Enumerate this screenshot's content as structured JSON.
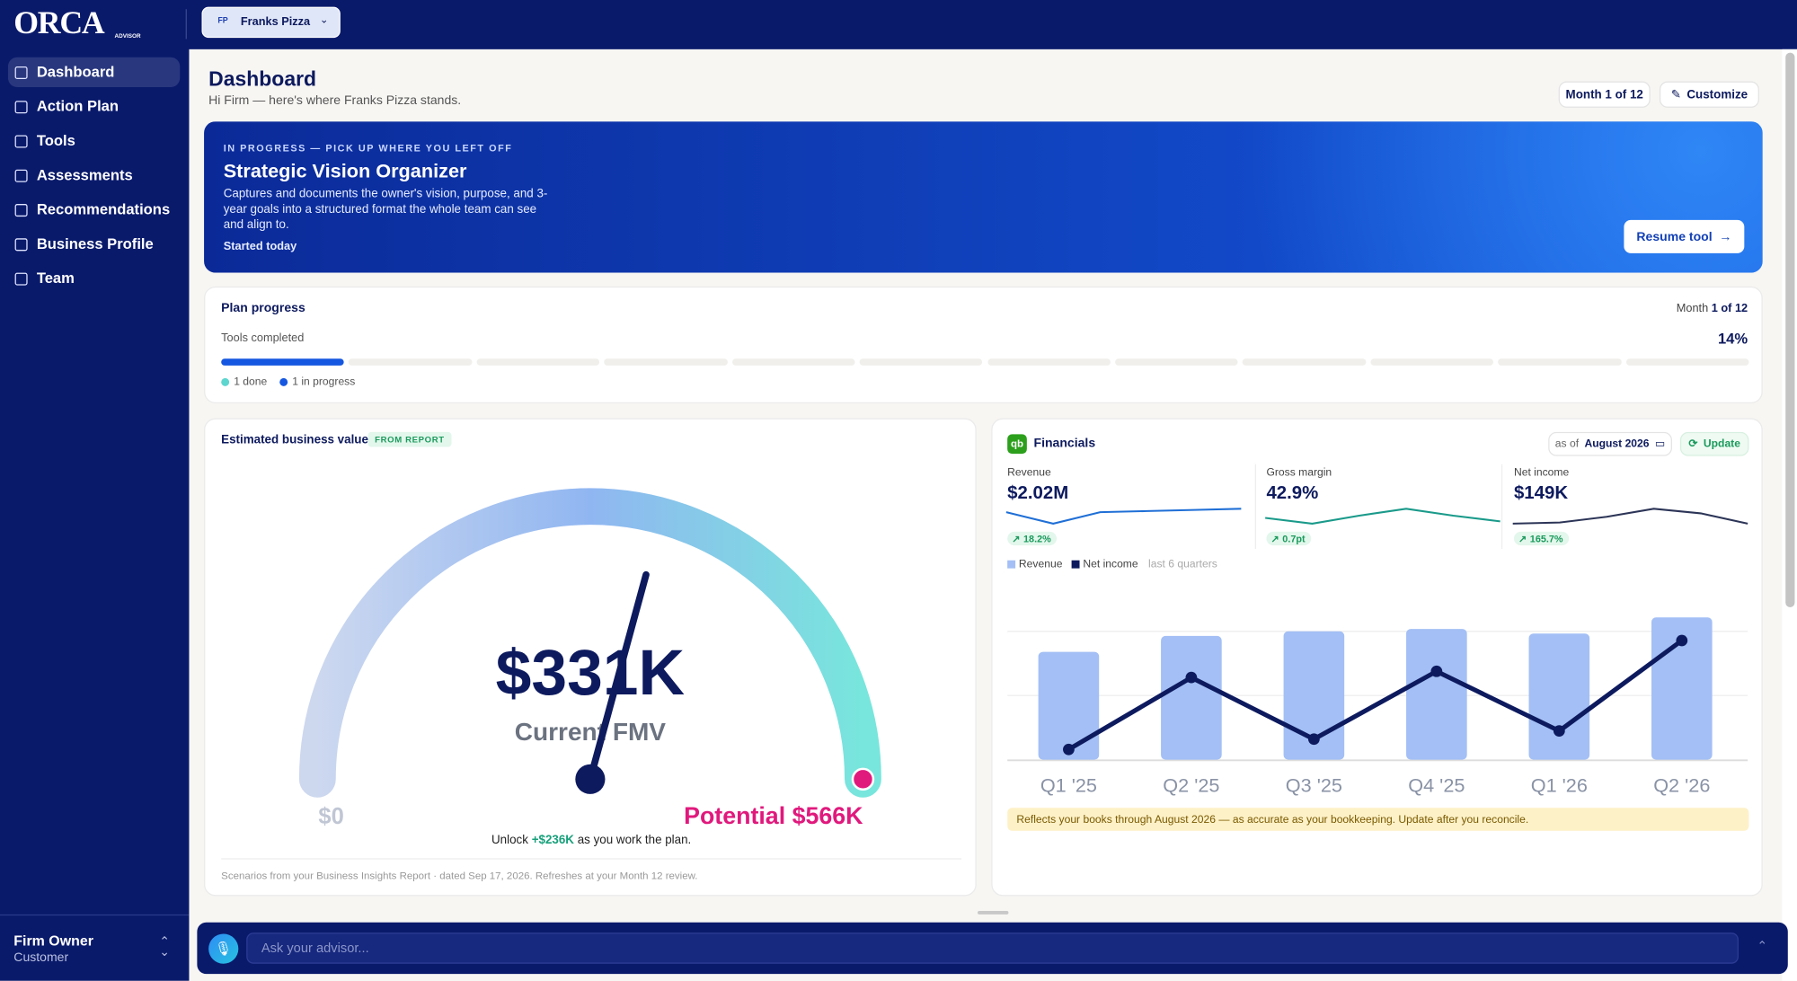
{
  "brand": {
    "name": "ORCA",
    "sub": "ADVISOR"
  },
  "org": {
    "initials": "FP",
    "name": "Franks Pizza"
  },
  "nav": [
    "Dashboard",
    "Action Plan",
    "Tools",
    "Assessments",
    "Recommendations",
    "Business Profile",
    "Team"
  ],
  "user": {
    "name": "Firm Owner",
    "role": "Customer"
  },
  "header": {
    "title": "Dashboard",
    "subtitle": "Hi Firm — here's where Franks Pizza stands.",
    "month": "Month 1 of 12",
    "customize": "Customize"
  },
  "hero": {
    "eyebrow": "IN PROGRESS — PICK UP WHERE YOU LEFT OFF",
    "title": "Strategic Vision Organizer",
    "description": "Captures and documents the owner's vision, purpose, and 3-year goals into a structured format the whole team can see and align to.",
    "started": "Started today",
    "button": "Resume tool"
  },
  "progress": {
    "title": "Plan progress",
    "month_prefix": "Month",
    "month": "1 of 12",
    "label": "Tools completed",
    "percent": "14%",
    "done": "1 done",
    "in_progress": "1 in progress"
  },
  "value_card": {
    "title": "Estimated business value",
    "badge": "FROM REPORT",
    "gauge": {
      "min": 0,
      "min_label": "$0",
      "value": 331,
      "value_label": "$331K",
      "value_caption": "Current FMV",
      "max": 566,
      "max_label": "Potential $566K"
    },
    "unlock": [
      "Unlock",
      "+$236K",
      "as you work the plan."
    ],
    "caption": "Scenarios from your Business Insights Report · dated Sep 17, 2026. Refreshes at your Month 12 review."
  },
  "financials": {
    "title": "Financials",
    "as_of": "as of",
    "date": "August 2026",
    "update": "Update",
    "spark_ylim": [
      0,
      20
    ],
    "metrics": [
      {
        "label": "Revenue",
        "value": "$2.02M",
        "change": "18.2%",
        "color": "#1f6fd6",
        "spark": [
          13,
          3,
          13,
          14,
          15,
          16
        ]
      },
      {
        "label": "Gross margin",
        "value": "42.9%",
        "change": "0.7pt",
        "color": "#1a9a8a",
        "spark": [
          8,
          3,
          10,
          16,
          10,
          5
        ]
      },
      {
        "label": "Net income",
        "value": "$149K",
        "change": "165.7%",
        "color": "#2c3557",
        "spark": [
          3,
          4,
          9,
          16,
          12,
          3
        ]
      }
    ],
    "chart_data": {
      "type": "bar",
      "categories": [
        "Q1 '25",
        "Q2 '25",
        "Q3 '25",
        "Q4 '25",
        "Q1 '26",
        "Q2 '26"
      ],
      "series": [
        {
          "name": "Revenue",
          "color": "#a3bff5",
          "values": [
            420,
            482,
            500,
            509,
            491,
            554
          ]
        },
        {
          "name": "Net income",
          "color": "#0d1a5e",
          "type": "line",
          "axis": "y2",
          "values": [
            5,
            40,
            10,
            43,
            14,
            58
          ]
        }
      ],
      "ylim": [
        0,
        600
      ],
      "y2lim": [
        0,
        75
      ],
      "legend_note": "last 6 quarters"
    },
    "note": "Reflects your books through August 2026 — as accurate as your bookkeeping. Update after you reconcile."
  },
  "ask": {
    "placeholder": "Ask your advisor..."
  }
}
